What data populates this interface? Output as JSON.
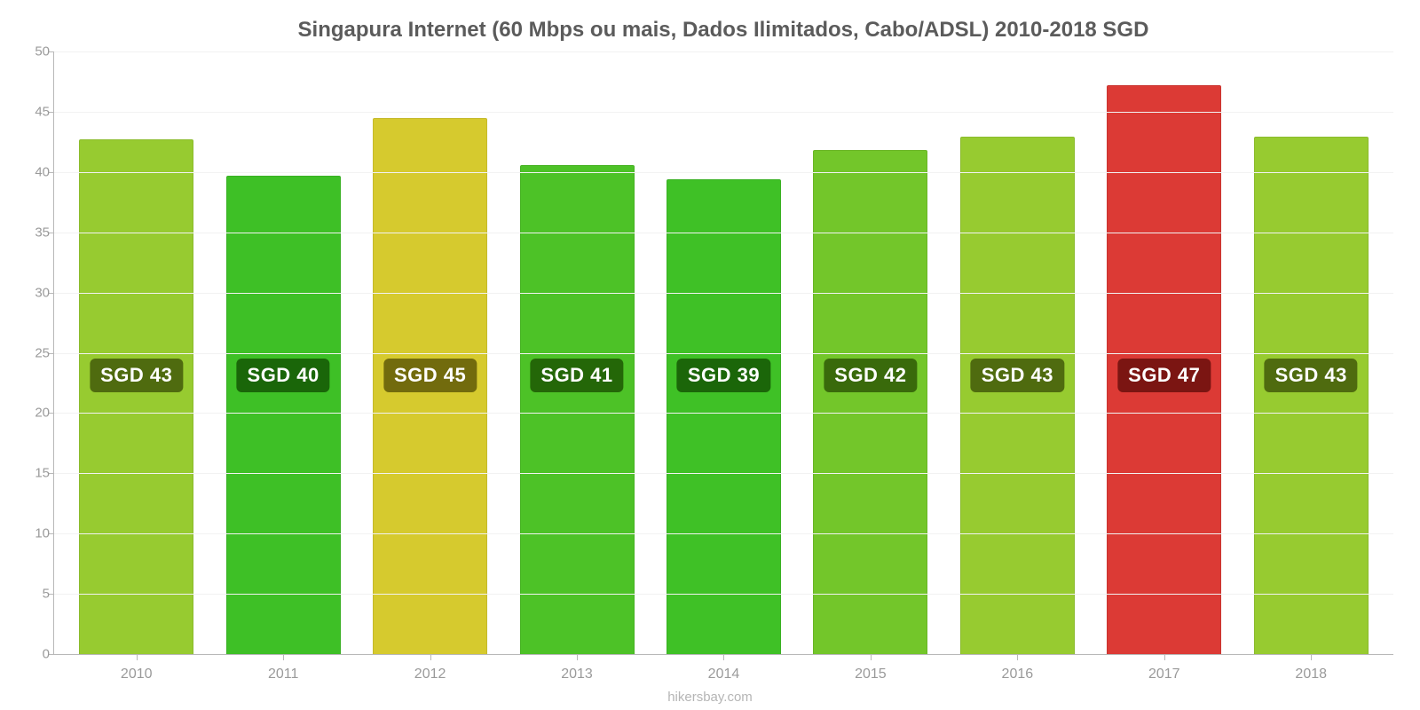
{
  "chart": {
    "type": "bar",
    "title": "Singapura Internet (60 Mbps ou mais, Dados Ilimitados, Cabo/ADSL) 2010-2018 SGD",
    "title_fontsize": 24,
    "title_color": "#5b5b5b",
    "attribution": "hikersbay.com",
    "attribution_fontsize": 15,
    "attribution_color": "#b5b5b5",
    "background_color": "#ffffff",
    "grid_color": "#f2f2f2",
    "axis_color": "#b8b8b8",
    "ylim": [
      0,
      50
    ],
    "ytick_step": 5,
    "ytick_fontsize": 15,
    "ytick_color": "#9a9a9a",
    "xtick_fontsize": 16,
    "xtick_color": "#9a9a9a",
    "bar_width_ratio": 0.78,
    "value_label_prefix": "SGD ",
    "value_label_fontsize": 22,
    "value_label_text_color": "#ffffff",
    "value_label_y_value": 23,
    "categories": [
      "2010",
      "2011",
      "2012",
      "2013",
      "2014",
      "2015",
      "2016",
      "2017",
      "2018"
    ],
    "values": [
      42.7,
      39.7,
      44.5,
      40.6,
      39.4,
      41.8,
      42.9,
      47.2,
      42.9
    ],
    "display_values": [
      "43",
      "40",
      "45",
      "41",
      "39",
      "42",
      "43",
      "47",
      "43"
    ],
    "bar_colors": [
      "#97cb30",
      "#3ec026",
      "#d6ca2e",
      "#4dc227",
      "#3fc126",
      "#73c62a",
      "#97cb30",
      "#dc3a35",
      "#97cb30"
    ],
    "badge_colors": [
      "#4f6b0f",
      "#1a6609",
      "#726b0d",
      "#246708",
      "#1b6609",
      "#396a0b",
      "#4f6b0f",
      "#7b1512",
      "#4f6b0f"
    ]
  }
}
